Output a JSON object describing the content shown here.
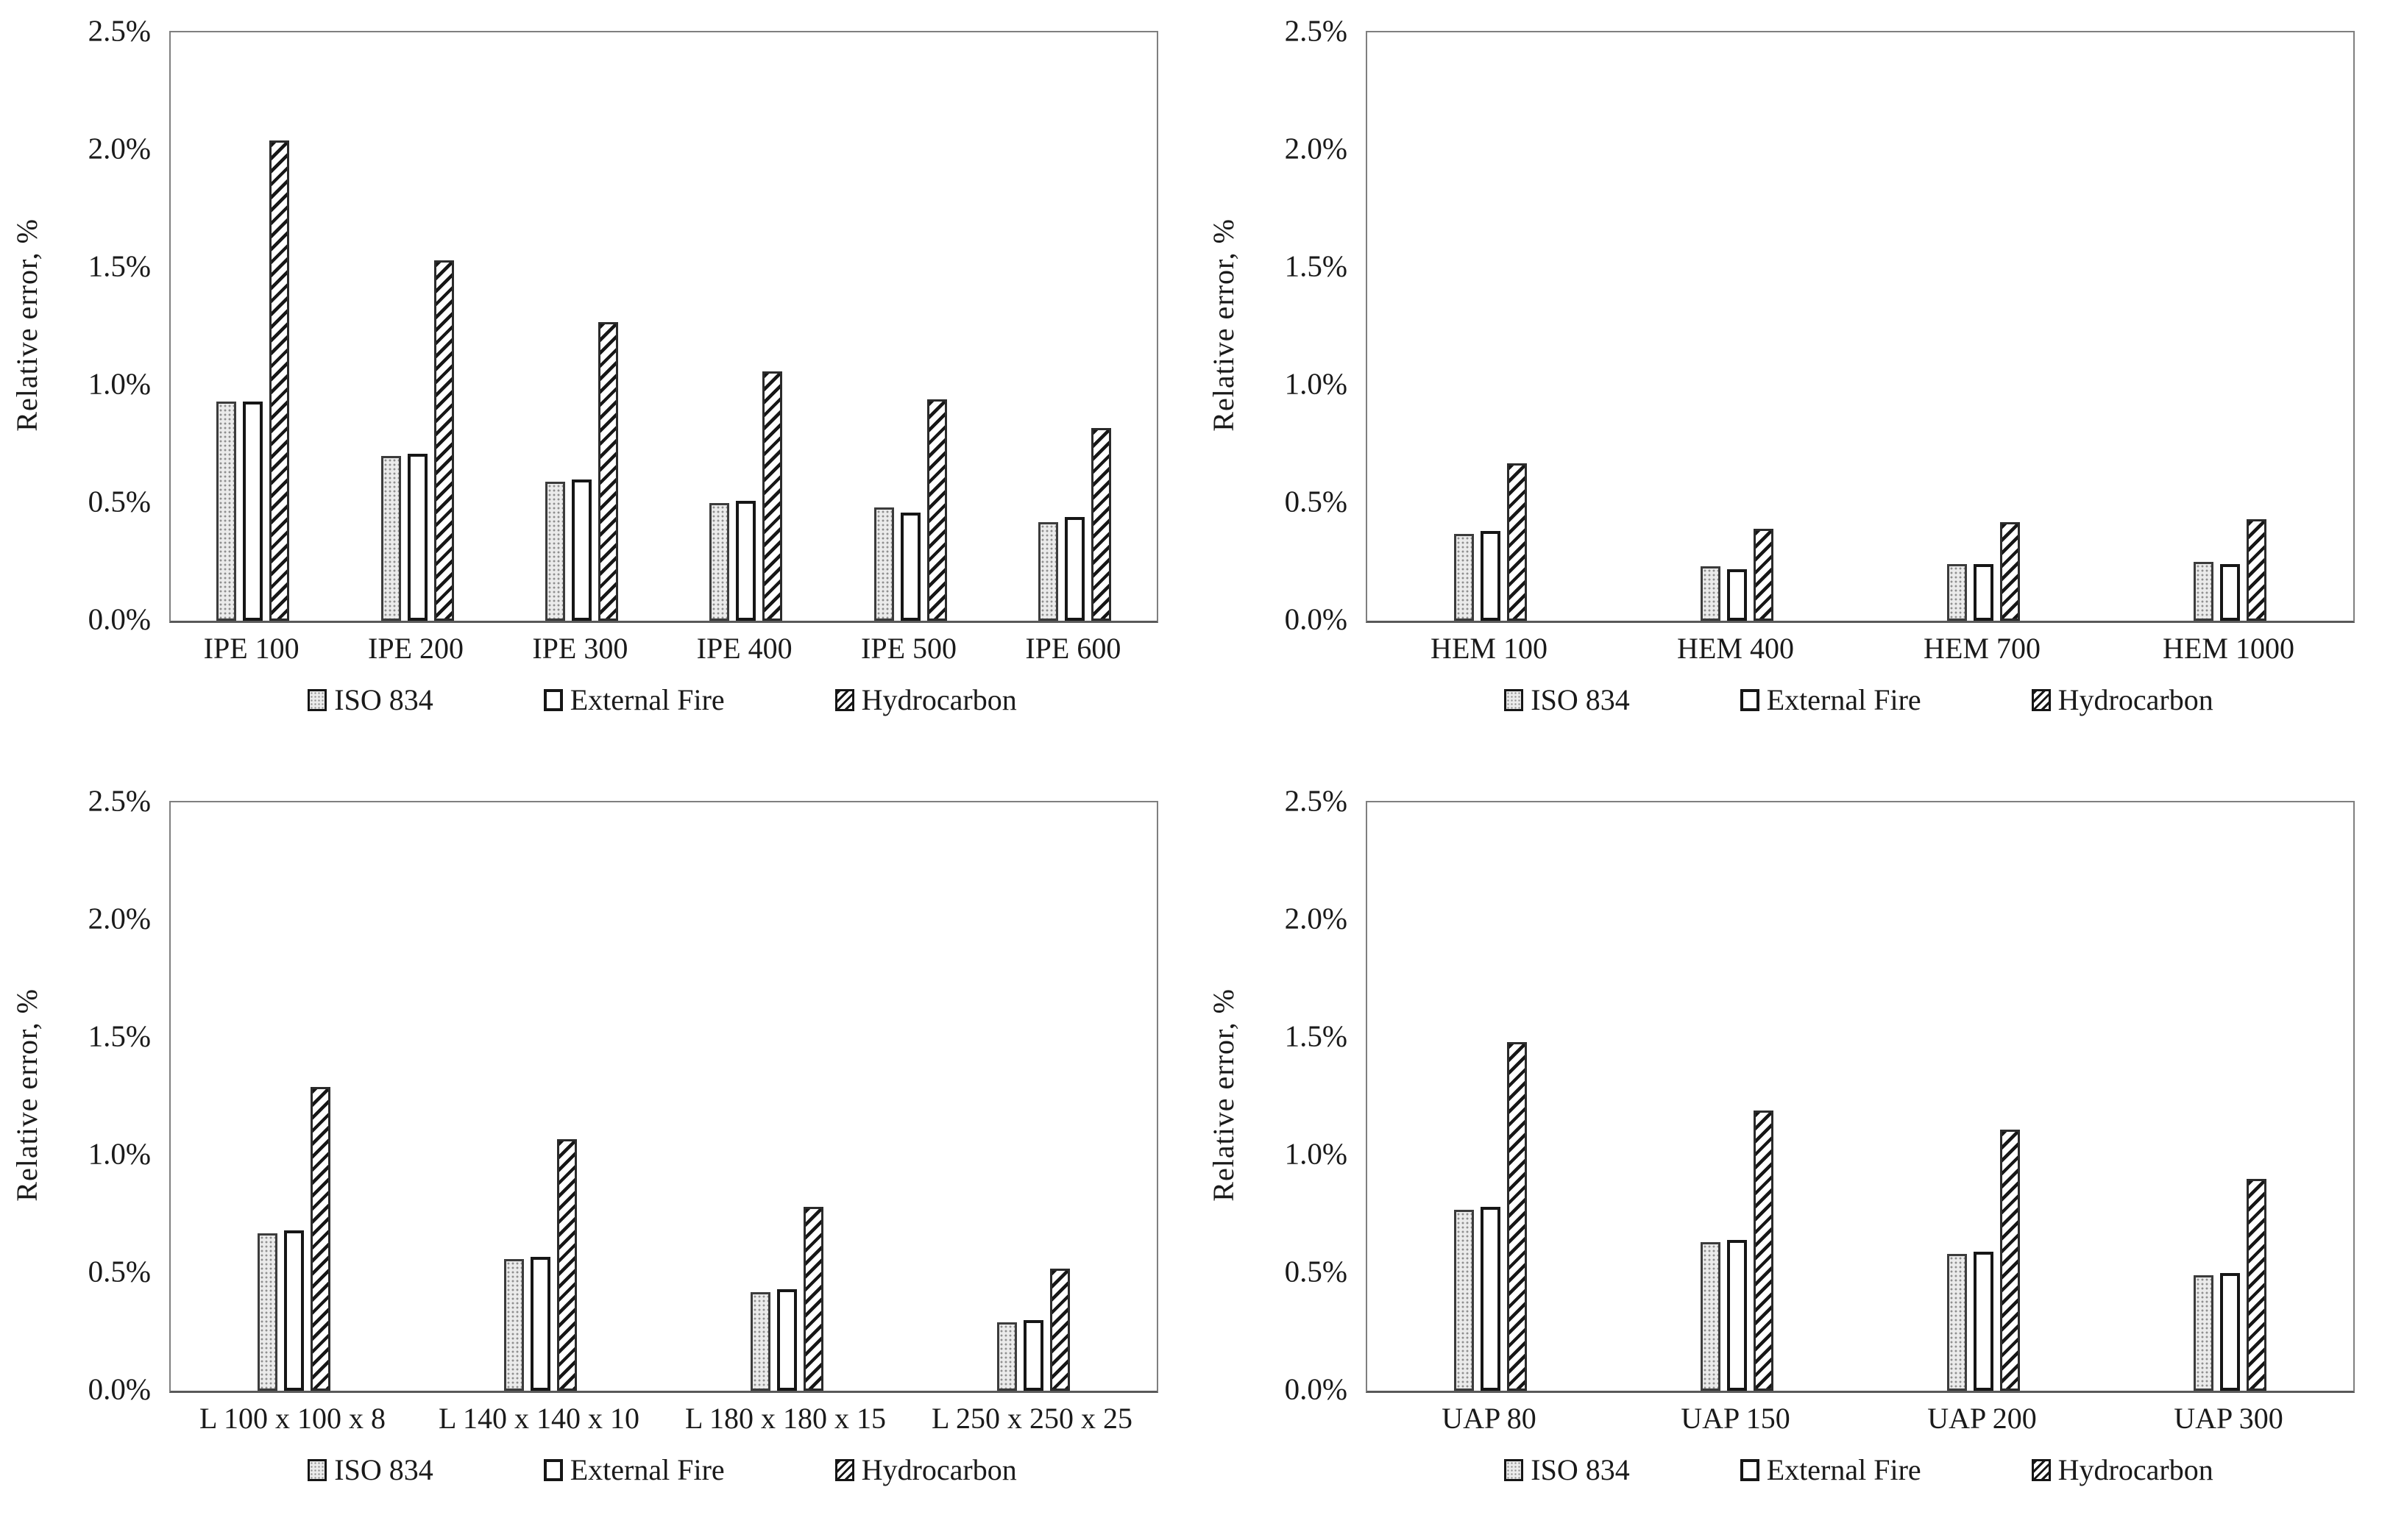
{
  "figure": {
    "ylabel": "Relative error, %",
    "ytick_labels": [
      "0.0%",
      "0.5%",
      "1.0%",
      "1.5%",
      "2.0%",
      "2.5%"
    ],
    "legend": [
      "ISO 834",
      "External Fire",
      "Hydrocarbon"
    ]
  },
  "colors": {
    "iso_fill": "#ebebeb",
    "iso_dot": "#8f8f8f",
    "external_fill": "#ffffff",
    "hydrocarbon_hatch": "#161616",
    "bar_border": "#2b2b2b",
    "axis_border": "#7f7f7f",
    "axis_baseline": "#595959",
    "text": "#1a1a1a"
  },
  "chart_data": [
    {
      "type": "bar",
      "title": "",
      "position": "top-left",
      "categories": [
        "IPE 100",
        "IPE 200",
        "IPE 300",
        "IPE 400",
        "IPE 500",
        "IPE 600"
      ],
      "series": [
        {
          "name": "ISO 834",
          "values": [
            0.93,
            0.7,
            0.59,
            0.5,
            0.48,
            0.42
          ]
        },
        {
          "name": "External Fire",
          "values": [
            0.93,
            0.71,
            0.6,
            0.51,
            0.46,
            0.44
          ]
        },
        {
          "name": "Hydrocarbon",
          "values": [
            2.04,
            1.53,
            1.27,
            1.06,
            0.94,
            0.82
          ]
        }
      ],
      "ylabel": "Relative error, %",
      "xlabel": "",
      "ylim": [
        0,
        2.5
      ],
      "yticks": [
        0.0,
        0.5,
        1.0,
        1.5,
        2.0,
        2.5
      ],
      "ytick_labels": [
        "0.0%",
        "0.5%",
        "1.0%",
        "1.5%",
        "2.0%",
        "2.5%"
      ],
      "grid": false,
      "legend_position": "bottom"
    },
    {
      "type": "bar",
      "title": "",
      "position": "top-right",
      "categories": [
        "HEM 100",
        "HEM 400",
        "HEM 700",
        "HEM 1000"
      ],
      "series": [
        {
          "name": "ISO 834",
          "values": [
            0.37,
            0.23,
            0.24,
            0.25
          ]
        },
        {
          "name": "External Fire",
          "values": [
            0.38,
            0.22,
            0.24,
            0.24
          ]
        },
        {
          "name": "Hydrocarbon",
          "values": [
            0.67,
            0.39,
            0.42,
            0.43
          ]
        }
      ],
      "ylabel": "Relative error, %",
      "xlabel": "",
      "ylim": [
        0,
        2.5
      ],
      "yticks": [
        0.0,
        0.5,
        1.0,
        1.5,
        2.0,
        2.5
      ],
      "ytick_labels": [
        "0.0%",
        "0.5%",
        "1.0%",
        "1.5%",
        "2.0%",
        "2.5%"
      ],
      "grid": false,
      "legend_position": "bottom"
    },
    {
      "type": "bar",
      "title": "",
      "position": "bottom-left",
      "categories": [
        "L 100 x 100 x 8",
        "L 140 x 140 x 10",
        "L 180 x 180 x 15",
        "L 250 x 250 x 25"
      ],
      "series": [
        {
          "name": "ISO 834",
          "values": [
            0.67,
            0.56,
            0.42,
            0.29
          ]
        },
        {
          "name": "External Fire",
          "values": [
            0.68,
            0.57,
            0.43,
            0.3
          ]
        },
        {
          "name": "Hydrocarbon",
          "values": [
            1.29,
            1.07,
            0.78,
            0.52
          ]
        }
      ],
      "ylabel": "Relative error, %",
      "xlabel": "",
      "ylim": [
        0,
        2.5
      ],
      "yticks": [
        0.0,
        0.5,
        1.0,
        1.5,
        2.0,
        2.5
      ],
      "ytick_labels": [
        "0.0%",
        "0.5%",
        "1.0%",
        "1.5%",
        "2.0%",
        "2.5%"
      ],
      "grid": false,
      "legend_position": "bottom"
    },
    {
      "type": "bar",
      "title": "",
      "position": "bottom-right",
      "categories": [
        "UAP 80",
        "UAP 150",
        "UAP 200",
        "UAP 300"
      ],
      "series": [
        {
          "name": "ISO 834",
          "values": [
            0.77,
            0.63,
            0.58,
            0.49
          ]
        },
        {
          "name": "External Fire",
          "values": [
            0.78,
            0.64,
            0.59,
            0.5
          ]
        },
        {
          "name": "Hydrocarbon",
          "values": [
            1.48,
            1.19,
            1.11,
            0.9
          ]
        }
      ],
      "ylabel": "Relative error, %",
      "xlabel": "",
      "ylim": [
        0,
        2.5
      ],
      "yticks": [
        0.0,
        0.5,
        1.0,
        1.5,
        2.0,
        2.5
      ],
      "ytick_labels": [
        "0.0%",
        "0.5%",
        "1.0%",
        "1.5%",
        "2.0%",
        "2.5%"
      ],
      "grid": false,
      "legend_position": "bottom"
    }
  ]
}
